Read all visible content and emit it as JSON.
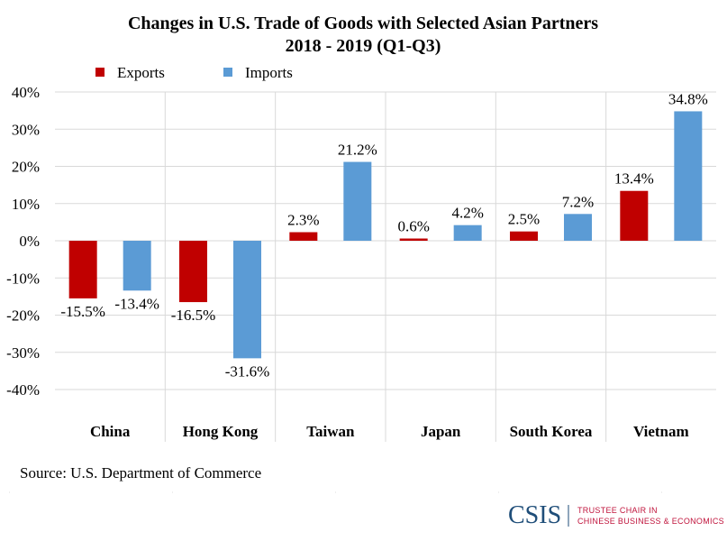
{
  "chart_data": {
    "type": "bar",
    "title": "Changes in U.S. Trade of Goods with Selected Asian Partners",
    "subtitle": "2018 - 2019 (Q1-Q3)",
    "categories": [
      "China",
      "Hong Kong",
      "Taiwan",
      "Japan",
      "South Korea",
      "Vietnam"
    ],
    "series": [
      {
        "name": "Exports",
        "color": "#c00000",
        "values": [
          -15.5,
          -16.5,
          2.3,
          0.6,
          2.5,
          13.4
        ],
        "labels": [
          "-15.5%",
          "-16.5%",
          "2.3%",
          "0.6%",
          "2.5%",
          "13.4%"
        ]
      },
      {
        "name": "Imports",
        "color": "#5b9bd5",
        "values": [
          -13.4,
          -31.6,
          21.2,
          4.2,
          7.2,
          34.8
        ],
        "labels": [
          "-13.4%",
          "-31.6%",
          "21.2%",
          "4.2%",
          "7.2%",
          "34.8%"
        ]
      }
    ],
    "yticks": [
      40,
      30,
      20,
      10,
      0,
      -10,
      -20,
      -30,
      -40
    ],
    "ytick_labels": [
      "40%",
      "30%",
      "20%",
      "10%",
      "0%",
      "-10%",
      "-20%",
      "-30%",
      "-40%"
    ],
    "ylim": [
      -40,
      40
    ],
    "xlabel": "",
    "ylabel": "",
    "grid": true,
    "legend_placement": "top-left",
    "source": "Source: U.S. Department of Commerce"
  },
  "logo": {
    "main": "CSIS",
    "line1": "TRUSTEE CHAIR IN",
    "line2": "CHINESE BUSINESS & ECONOMICS"
  }
}
